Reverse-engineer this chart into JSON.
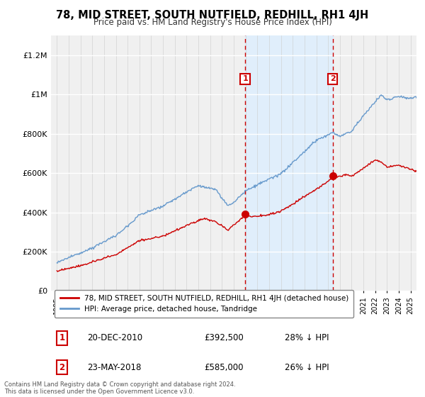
{
  "title": "78, MID STREET, SOUTH NUTFIELD, REDHILL, RH1 4JH",
  "subtitle": "Price paid vs. HM Land Registry's House Price Index (HPI)",
  "footer": "Contains HM Land Registry data © Crown copyright and database right 2024.\nThis data is licensed under the Open Government Licence v3.0.",
  "legend_entry1": "78, MID STREET, SOUTH NUTFIELD, REDHILL, RH1 4JH (detached house)",
  "legend_entry2": "HPI: Average price, detached house, Tandridge",
  "sale1_label": "1",
  "sale1_date": "20-DEC-2010",
  "sale1_price": "£392,500",
  "sale1_hpi": "28% ↓ HPI",
  "sale2_label": "2",
  "sale2_date": "23-MAY-2018",
  "sale2_price": "£585,000",
  "sale2_hpi": "26% ↓ HPI",
  "sale1_year": 2010.97,
  "sale2_year": 2018.4,
  "sale1_price_val": 392500,
  "sale2_price_val": 585000,
  "color_red": "#cc0000",
  "color_blue": "#6699cc",
  "color_shade": "#ddeeff",
  "color_vline": "#cc0000",
  "ylim": [
    0,
    1300000
  ],
  "xlim": [
    1994.5,
    2025.5
  ],
  "background_color": "#ffffff",
  "plot_bg_color": "#f0f0f0"
}
